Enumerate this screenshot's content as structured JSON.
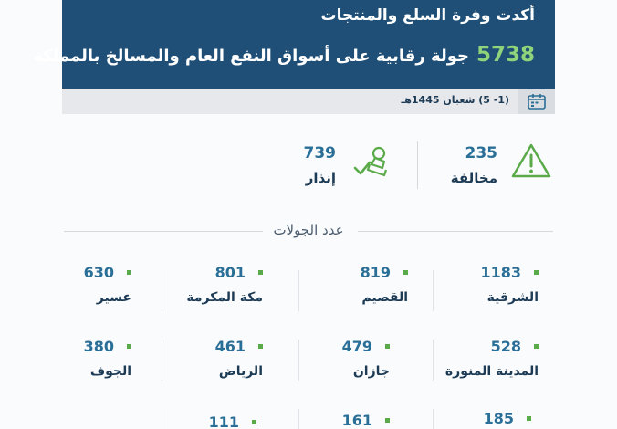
{
  "header": {
    "line1": "أكدت وفرة السلع والمنتجات",
    "count": "5738",
    "line2": "جولة رقابية على أسواق النفع العام والمسالخ بالمملكة"
  },
  "date": "(1- 5) شعبان 1445هـ",
  "stats": [
    {
      "value": "235",
      "label": "مخالفة",
      "icon": "warning-triangle-icon"
    },
    {
      "value": "739",
      "label": "إنذار",
      "icon": "stamp-check-icon"
    }
  ],
  "section_title": "عدد الجولات",
  "regions": [
    {
      "name": "الشرقية",
      "value": "1183"
    },
    {
      "name": "القصيم",
      "value": "819"
    },
    {
      "name": "مكة المكرمة",
      "value": "801"
    },
    {
      "name": "عسير",
      "value": "630"
    },
    {
      "name": "المدينة المنورة",
      "value": "528"
    },
    {
      "name": "جازان",
      "value": "479"
    },
    {
      "name": "الرياض",
      "value": "461"
    },
    {
      "name": "الجوف",
      "value": "380"
    },
    {
      "name": "",
      "value": "185"
    },
    {
      "name": "",
      "value": "161"
    },
    {
      "name": "",
      "value": "111"
    }
  ],
  "colors": {
    "header_bg": "#1f4f76",
    "accent_green": "#5aaa4a",
    "number_blue": "#2a6f97"
  }
}
